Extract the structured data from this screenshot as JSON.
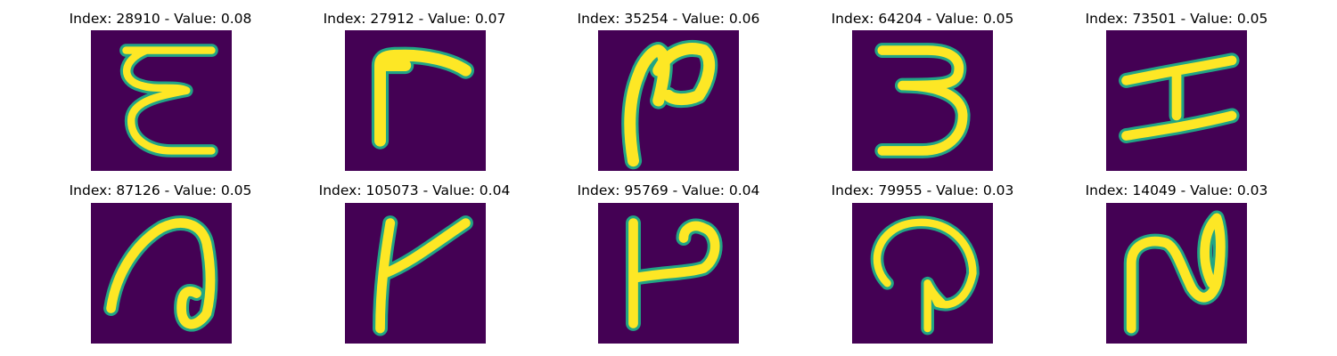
{
  "colors": {
    "background": "#440154",
    "low": "#2c728e",
    "mid": "#21a585",
    "high": "#fde725"
  },
  "panels": [
    {
      "title": "Index: 28910 - Value: 0.08",
      "glyph": "E"
    },
    {
      "title": "Index: 27912 - Value: 0.07",
      "glyph": "r"
    },
    {
      "title": "Index: 35254 - Value: 0.06",
      "glyph": "n"
    },
    {
      "title": "Index: 64204 - Value: 0.05",
      "glyph": "3"
    },
    {
      "title": "Index: 73501 - Value: 0.05",
      "glyph": "H"
    },
    {
      "title": "Index: 87126 - Value: 0.05",
      "glyph": "a"
    },
    {
      "title": "Index: 105073 - Value: 0.04",
      "glyph": "k"
    },
    {
      "title": "Index: 95769 - Value: 0.04",
      "glyph": "P"
    },
    {
      "title": "Index: 79955 - Value: 0.03",
      "glyph": "Q"
    },
    {
      "title": "Index: 14049 - Value: 0.03",
      "glyph": "n"
    }
  ]
}
